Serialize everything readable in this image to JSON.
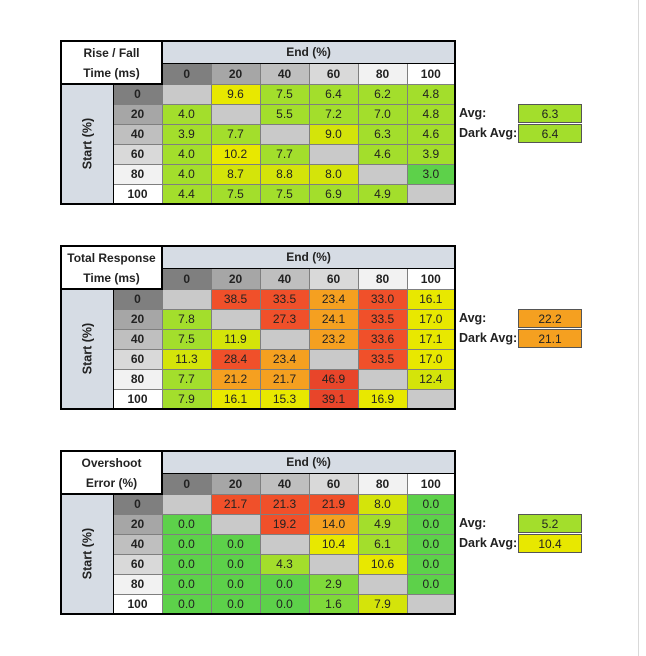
{
  "chart_data": [
    {
      "type": "table",
      "title_lines": [
        "Rise / Fall",
        "Time (ms)"
      ],
      "col_header": "End (%)",
      "row_header": "Start (%)",
      "columns": [
        "0",
        "20",
        "40",
        "60",
        "80",
        "100"
      ],
      "rows": [
        "0",
        "20",
        "40",
        "60",
        "80",
        "100"
      ],
      "values": [
        [
          "",
          "9.6",
          "7.5",
          "6.4",
          "6.2",
          "4.8"
        ],
        [
          "4.0",
          "",
          "5.5",
          "7.2",
          "7.0",
          "4.8"
        ],
        [
          "3.9",
          "7.7",
          "",
          "9.0",
          "6.3",
          "4.6"
        ],
        [
          "4.0",
          "10.2",
          "7.7",
          "",
          "4.6",
          "3.9"
        ],
        [
          "4.0",
          "8.7",
          "8.8",
          "8.0",
          "",
          "3.0"
        ],
        [
          "4.4",
          "7.5",
          "7.5",
          "6.9",
          "4.9",
          ""
        ]
      ],
      "colors": [
        [
          "#c9c9c9",
          "#e8e800",
          "#a3de2c",
          "#a3de2c",
          "#a3de2c",
          "#a3de2c"
        ],
        [
          "#a3de2c",
          "#c9c9c9",
          "#a3de2c",
          "#a3de2c",
          "#a3de2c",
          "#a3de2c"
        ],
        [
          "#a3de2c",
          "#a3de2c",
          "#c9c9c9",
          "#d4e40a",
          "#a3de2c",
          "#a3de2c"
        ],
        [
          "#a3de2c",
          "#e8e800",
          "#a3de2c",
          "#c9c9c9",
          "#a3de2c",
          "#a3de2c"
        ],
        [
          "#a3de2c",
          "#d4e40a",
          "#d4e40a",
          "#d4e40a",
          "#c9c9c9",
          "#5dd14a"
        ],
        [
          "#a3de2c",
          "#a3de2c",
          "#a3de2c",
          "#a3de2c",
          "#a3de2c",
          "#c9c9c9"
        ]
      ],
      "summary": [
        {
          "label": "Avg:",
          "value": "6.3",
          "color": "#a3de2c"
        },
        {
          "label": "Dark Avg:",
          "value": "6.4",
          "color": "#a3de2c"
        }
      ]
    },
    {
      "type": "table",
      "title_lines": [
        "Total Response",
        "Time (ms)"
      ],
      "col_header": "End (%)",
      "row_header": "Start (%)",
      "columns": [
        "0",
        "20",
        "40",
        "60",
        "80",
        "100"
      ],
      "rows": [
        "0",
        "20",
        "40",
        "60",
        "80",
        "100"
      ],
      "values": [
        [
          "",
          "38.5",
          "33.5",
          "23.4",
          "33.0",
          "16.1"
        ],
        [
          "7.8",
          "",
          "27.3",
          "24.1",
          "33.5",
          "17.0"
        ],
        [
          "7.5",
          "11.9",
          "",
          "23.2",
          "33.6",
          "17.1"
        ],
        [
          "11.3",
          "28.4",
          "23.4",
          "",
          "33.5",
          "17.0"
        ],
        [
          "7.7",
          "21.2",
          "21.7",
          "46.9",
          "",
          "12.4"
        ],
        [
          "7.9",
          "16.1",
          "15.3",
          "39.1",
          "16.9",
          ""
        ]
      ],
      "colors": [
        [
          "#c9c9c9",
          "#f0502a",
          "#f0502a",
          "#f5a020",
          "#f0502a",
          "#e8e800"
        ],
        [
          "#a3de2c",
          "#c9c9c9",
          "#f0502a",
          "#f5a020",
          "#f0502a",
          "#e8e800"
        ],
        [
          "#a3de2c",
          "#d4e40a",
          "#c9c9c9",
          "#f5a020",
          "#f0502a",
          "#e8e800"
        ],
        [
          "#d4e40a",
          "#f0502a",
          "#f5a020",
          "#c9c9c9",
          "#f0502a",
          "#e8e800"
        ],
        [
          "#a3de2c",
          "#f5a020",
          "#f5a020",
          "#e8452a",
          "#c9c9c9",
          "#d4e40a"
        ],
        [
          "#a3de2c",
          "#e8e800",
          "#e8e800",
          "#e8452a",
          "#e8e800",
          "#c9c9c9"
        ]
      ],
      "summary": [
        {
          "label": "Avg:",
          "value": "22.2",
          "color": "#f5a020"
        },
        {
          "label": "Dark Avg:",
          "value": "21.1",
          "color": "#f5a020"
        }
      ]
    },
    {
      "type": "table",
      "title_lines": [
        "Overshoot",
        "Error (%)"
      ],
      "col_header": "End (%)",
      "row_header": "Start (%)",
      "columns": [
        "0",
        "20",
        "40",
        "60",
        "80",
        "100"
      ],
      "rows": [
        "0",
        "20",
        "40",
        "60",
        "80",
        "100"
      ],
      "values": [
        [
          "",
          "21.7",
          "21.3",
          "21.9",
          "8.0",
          "0.0"
        ],
        [
          "0.0",
          "",
          "19.2",
          "14.0",
          "4.9",
          "0.0"
        ],
        [
          "0.0",
          "0.0",
          "",
          "10.4",
          "6.1",
          "0.0"
        ],
        [
          "0.0",
          "0.0",
          "4.3",
          "",
          "10.6",
          "0.0"
        ],
        [
          "0.0",
          "0.0",
          "0.0",
          "2.9",
          "",
          "0.0"
        ],
        [
          "0.0",
          "0.0",
          "0.0",
          "1.6",
          "7.9",
          ""
        ]
      ],
      "colors": [
        [
          "#c9c9c9",
          "#f0502a",
          "#f0502a",
          "#f0502a",
          "#d4e40a",
          "#5dd14a"
        ],
        [
          "#5dd14a",
          "#c9c9c9",
          "#f0502a",
          "#f5a020",
          "#a3de2c",
          "#5dd14a"
        ],
        [
          "#5dd14a",
          "#5dd14a",
          "#c9c9c9",
          "#e8e800",
          "#a3de2c",
          "#5dd14a"
        ],
        [
          "#5dd14a",
          "#5dd14a",
          "#a3de2c",
          "#c9c9c9",
          "#e8e800",
          "#5dd14a"
        ],
        [
          "#5dd14a",
          "#5dd14a",
          "#5dd14a",
          "#7fd93a",
          "#c9c9c9",
          "#5dd14a"
        ],
        [
          "#5dd14a",
          "#5dd14a",
          "#5dd14a",
          "#7fd93a",
          "#d4e40a",
          "#c9c9c9"
        ]
      ],
      "summary": [
        {
          "label": "Avg:",
          "value": "5.2",
          "color": "#a3de2c"
        },
        {
          "label": "Dark Avg:",
          "value": "10.4",
          "color": "#e8e800"
        }
      ]
    }
  ],
  "header_colors": [
    "#7f7f7f",
    "#a6a6a6",
    "#bfbfbf",
    "#d9d9d9",
    "#f2f2f2",
    "#ffffff"
  ]
}
